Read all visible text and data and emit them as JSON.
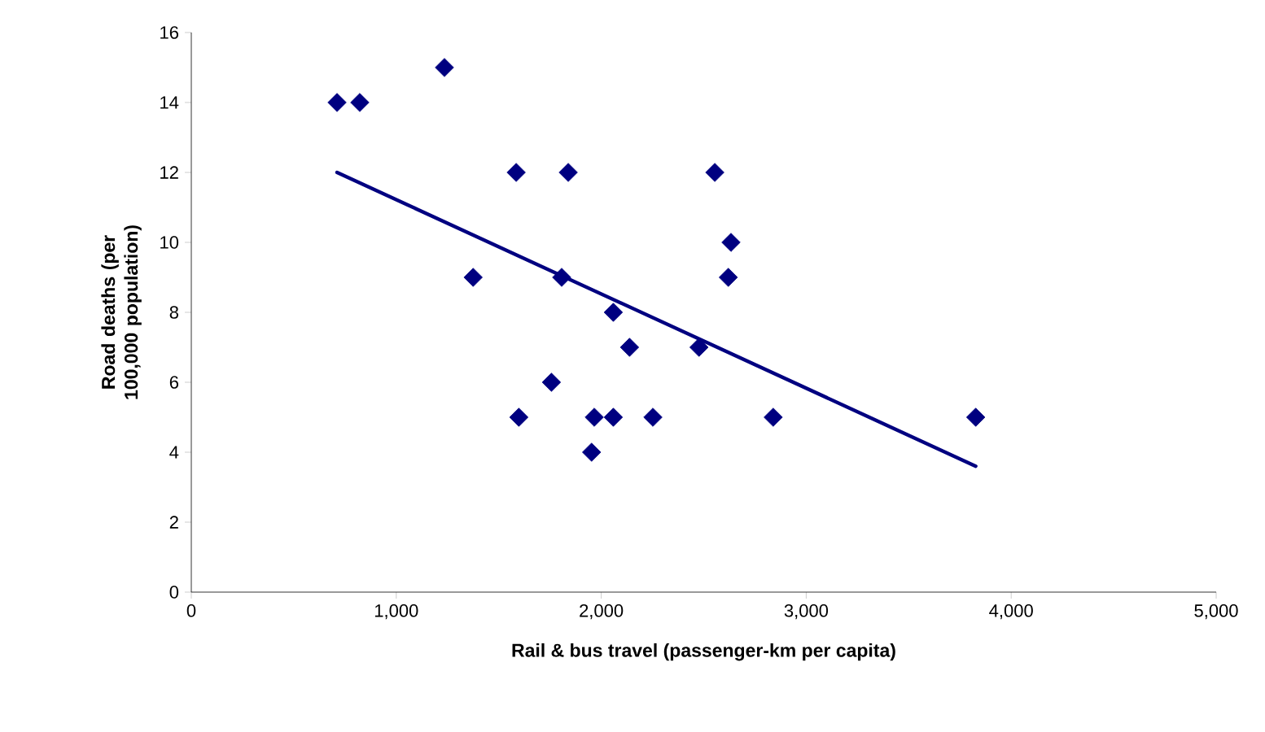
{
  "chart_data": {
    "type": "scatter",
    "xlabel": "Rail & bus travel (passenger-km per capita)",
    "ylabel": "Road deaths (per 100,000 population)",
    "xlim": [
      0,
      5000
    ],
    "ylim": [
      0,
      16
    ],
    "xticks": [
      0,
      {
        "value": 1000,
        "label": "1,000"
      },
      {
        "value": 2000,
        "label": "2,000"
      },
      {
        "value": 3000,
        "label": "3,000"
      },
      {
        "value": 4000,
        "label": "4,000"
      },
      {
        "value": 5000,
        "label": "5,000"
      }
    ],
    "yticks": [
      0,
      2,
      4,
      6,
      8,
      10,
      12,
      14,
      16
    ],
    "marker": "diamond",
    "series": [
      {
        "color": "#000080",
        "x": [
          711,
          822,
          1235,
          1375,
          1585,
          1598,
          1757,
          1807,
          1839,
          1953,
          1966,
          2059,
          2059,
          2138,
          2252,
          2477,
          2554,
          2620,
          2633,
          2839,
          3827
        ],
        "values": [
          14,
          14,
          15,
          9,
          12,
          5,
          6,
          9,
          12,
          4,
          5,
          5,
          8,
          7,
          5,
          7,
          12,
          9,
          10,
          5,
          5
        ]
      },
      {
        "type": "line",
        "marker": "none",
        "line_style": "solid",
        "color": "#000080",
        "x": [
          711,
          3827
        ],
        "values": [
          12,
          3.6
        ]
      }
    ]
  }
}
